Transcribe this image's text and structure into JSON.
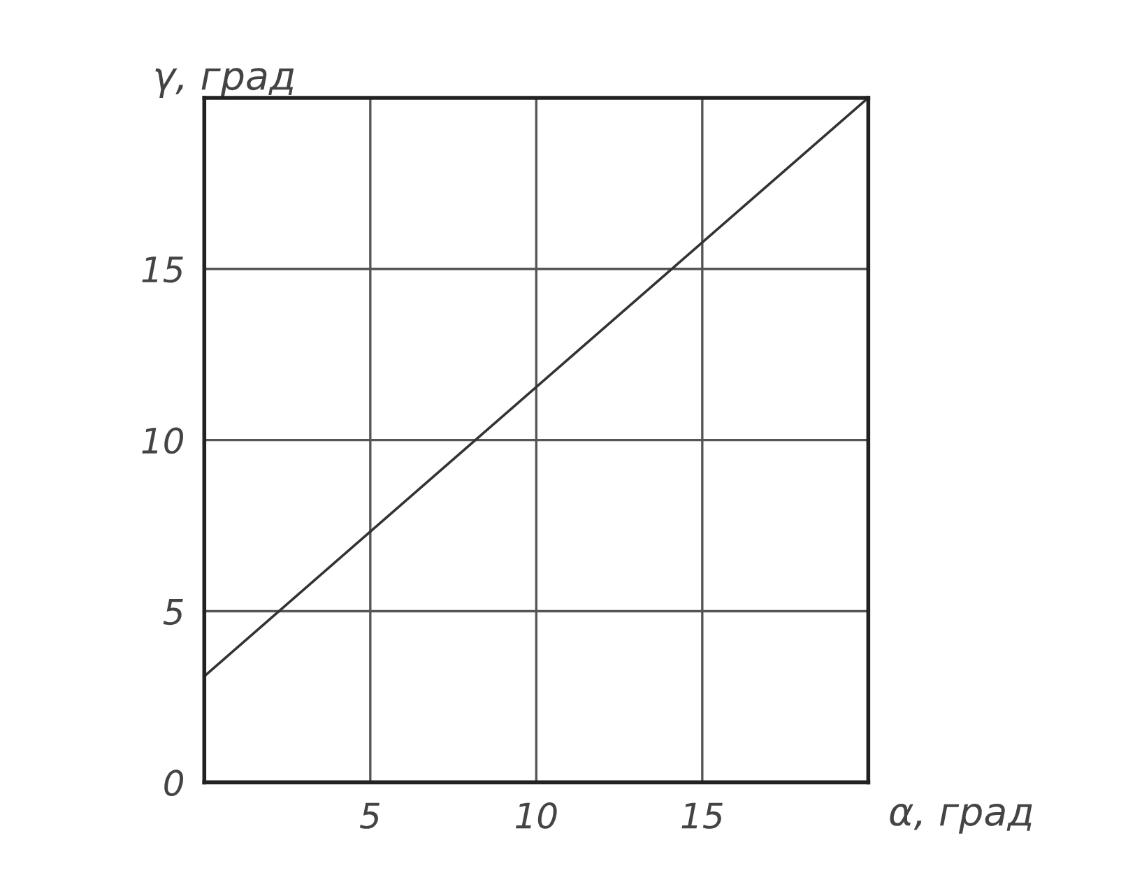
{
  "chart_data": {
    "type": "line",
    "xlabel": "α, град",
    "ylabel": "γ, град",
    "x": [
      0,
      20
    ],
    "series": [
      {
        "color": "#333333",
        "values": [
          3.1,
          20
        ]
      }
    ],
    "xlim": [
      0,
      20
    ],
    "ylim": [
      0,
      20
    ],
    "xticks": [
      5,
      10,
      15
    ],
    "yticks": [
      0,
      5,
      10,
      15
    ],
    "grid": true,
    "marker": "none",
    "line_style": "solid"
  }
}
